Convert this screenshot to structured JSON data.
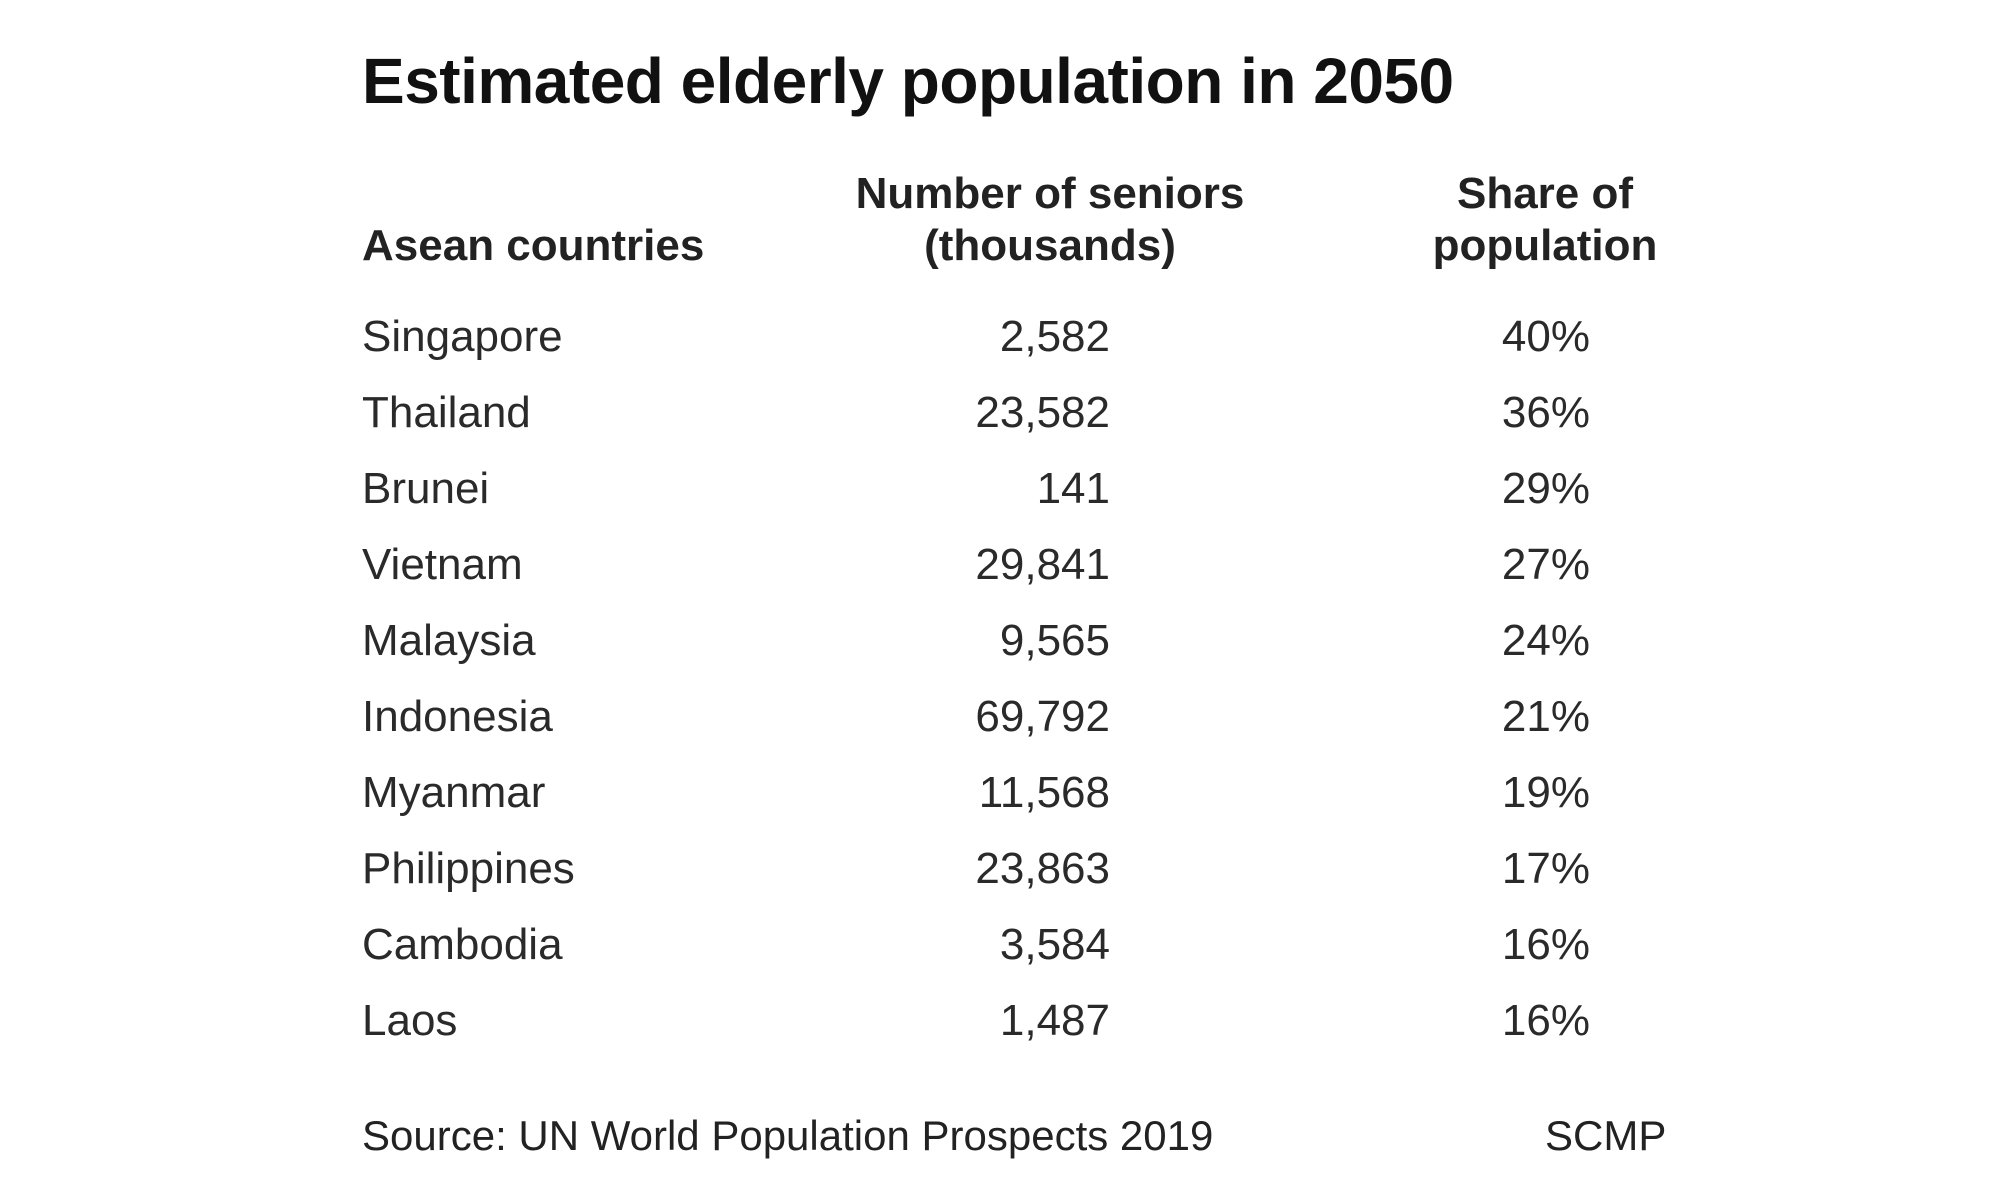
{
  "chart_data": {
    "type": "table",
    "title": "Estimated elderly population in 2050",
    "columns": [
      {
        "label_line1": "",
        "label_line2": "Asean countries"
      },
      {
        "label_line1": "Number of seniors",
        "label_line2": "(thousands)"
      },
      {
        "label_line1": "Share of",
        "label_line2": "population"
      }
    ],
    "rows": [
      {
        "country": "Singapore",
        "seniors": "2,582",
        "share": "40%"
      },
      {
        "country": "Thailand",
        "seniors": "23,582",
        "share": "36%"
      },
      {
        "country": "Brunei",
        "seniors": "141",
        "share": "29%"
      },
      {
        "country": "Vietnam",
        "seniors": "29,841",
        "share": "27%"
      },
      {
        "country": "Malaysia",
        "seniors": "9,565",
        "share": "24%"
      },
      {
        "country": "Indonesia",
        "seniors": "69,792",
        "share": "21%"
      },
      {
        "country": "Myanmar",
        "seniors": "11,568",
        "share": "19%"
      },
      {
        "country": "Philippines",
        "seniors": "23,863",
        "share": "17%"
      },
      {
        "country": "Cambodia",
        "seniors": "3,584",
        "share": "16%"
      },
      {
        "country": "Laos",
        "seniors": "1,487",
        "share": "16%"
      }
    ],
    "source": "Source: UN World Population Prospects 2019",
    "credit": "SCMP"
  }
}
